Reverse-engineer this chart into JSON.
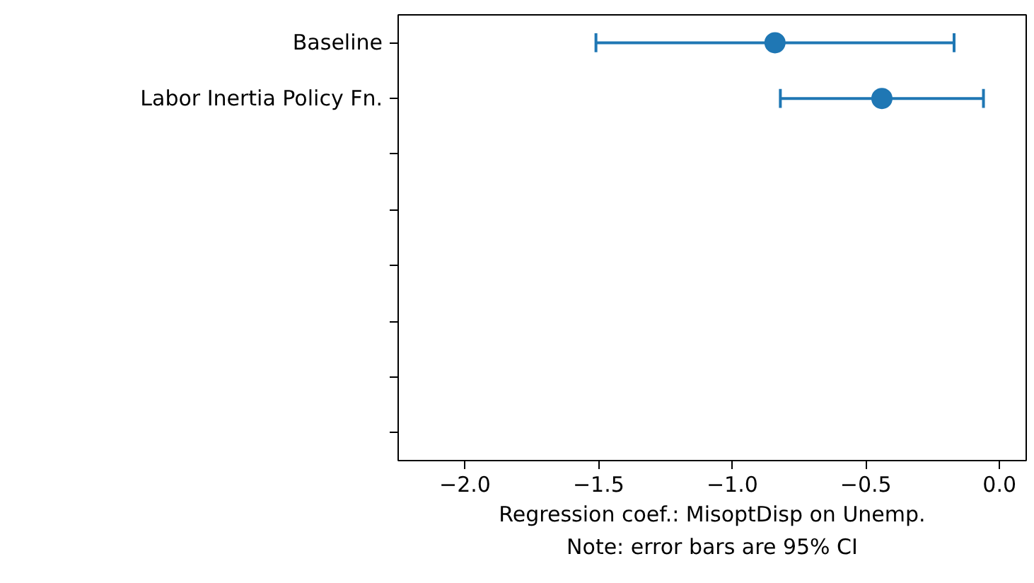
{
  "chart_data": {
    "type": "scatter",
    "orientation": "horizontal",
    "categories": [
      "Baseline",
      "Labor Inertia Policy Fn.",
      null,
      null,
      null,
      null,
      null,
      null
    ],
    "color": "#1f77b4",
    "values": [
      -0.84,
      -0.44,
      null,
      null,
      null,
      null,
      null,
      null
    ],
    "errors": [
      [
        -1.51,
        -0.17
      ],
      [
        -0.82,
        -0.06
      ],
      null,
      null,
      null,
      null,
      null,
      null
    ],
    "xlabel": "Regression coef.: MisoptDisp on Unemp.",
    "annotations": [
      "Note: error bars are 95% CI"
    ],
    "xlim": [
      -2.25,
      0.1
    ],
    "xticks": [
      {
        "value": -2.0,
        "label": "−2.0"
      },
      {
        "value": -1.5,
        "label": "−1.5"
      },
      {
        "value": -1.0,
        "label": "−1.0"
      },
      {
        "value": -0.5,
        "label": "−0.5"
      },
      {
        "value": 0.0,
        "label": "0.0"
      }
    ],
    "marker": "circle",
    "grid": false
  }
}
